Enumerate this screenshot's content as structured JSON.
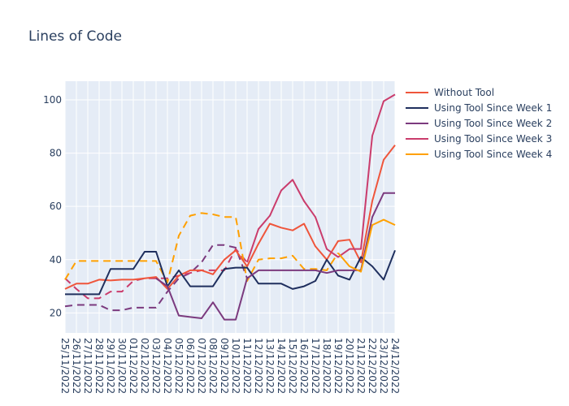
{
  "chart_data": {
    "type": "line",
    "title": "Lines of Code",
    "xlabel": "",
    "ylabel": "",
    "ylim": [
      12.5,
      107
    ],
    "yticks": [
      20,
      40,
      60,
      80,
      100
    ],
    "grid": true,
    "legend_position": "right",
    "categories": [
      "25/11/2022",
      "26/11/2022",
      "27/11/2022",
      "28/11/2022",
      "29/11/2022",
      "30/11/2022",
      "01/12/2022",
      "02/12/2022",
      "03/12/2022",
      "04/12/2022",
      "05/12/2022",
      "06/12/2022",
      "07/12/2022",
      "08/12/2022",
      "09/12/2022",
      "10/12/2022",
      "11/12/2022",
      "12/12/2022",
      "13/12/2022",
      "14/12/2022",
      "15/12/2022",
      "16/12/2022",
      "17/12/2022",
      "18/12/2022",
      "19/12/2022",
      "20/12/2022",
      "21/12/2022",
      "22/12/2022",
      "23/12/2022",
      "24/12/2022"
    ],
    "series": [
      {
        "name": "Without Tool",
        "color": "#ef553b",
        "values": [
          29,
          31,
          31,
          32.5,
          32.2,
          32.5,
          32.5,
          33,
          33.5,
          29,
          34,
          36,
          36,
          34.5,
          40,
          43.5,
          37.5,
          46,
          53.5,
          52,
          51,
          53.5,
          45,
          40,
          47,
          47.5,
          39,
          62,
          77.5,
          83
        ],
        "dashed_values": []
      },
      {
        "name": "Using Tool Since Week 1",
        "color": "#1f2f5e",
        "values": [
          27,
          27,
          27,
          27,
          36.5,
          36.5,
          36.5,
          43,
          43,
          30,
          36,
          30,
          30,
          30,
          36.5,
          37,
          37,
          31,
          31,
          31,
          29,
          30,
          32,
          40,
          34,
          32.5,
          41,
          37.5,
          32.5,
          43.5
        ],
        "dashed_values": []
      },
      {
        "name": "Using Tool Since Week 2",
        "color": "#7b3a7e",
        "values": [
          null,
          null,
          null,
          null,
          null,
          null,
          null,
          null,
          33,
          30,
          19,
          18.5,
          18,
          24,
          17.5,
          17.5,
          33,
          36,
          36,
          36,
          36,
          36,
          36,
          35,
          36,
          36,
          36,
          56,
          65,
          65
        ],
        "dashed_values": [
          22.5,
          23,
          23,
          23,
          21,
          21,
          22,
          22,
          22,
          28,
          33,
          35,
          39,
          45.5,
          45.5,
          44.5,
          33
        ]
      },
      {
        "name": "Using Tool Since Week 3",
        "color": "#ca3c6c",
        "values": [
          null,
          null,
          null,
          null,
          null,
          null,
          null,
          null,
          null,
          null,
          null,
          null,
          null,
          null,
          null,
          null,
          39,
          51.5,
          56.5,
          66,
          70,
          62,
          56,
          44,
          41,
          44,
          44,
          86.5,
          99.5,
          102
        ],
        "dashed_values": [
          33,
          29,
          25.5,
          25.5,
          28,
          28,
          32,
          33,
          33,
          33,
          34,
          35,
          36,
          36,
          36,
          44,
          39
        ]
      },
      {
        "name": "Using Tool Since Week 4",
        "color": "#ffa000",
        "values": [
          null,
          null,
          null,
          null,
          null,
          null,
          null,
          null,
          null,
          null,
          null,
          null,
          null,
          null,
          null,
          null,
          null,
          null,
          null,
          null,
          null,
          null,
          null,
          null,
          42.5,
          37.5,
          35.5,
          53,
          55,
          53
        ],
        "dashed_values": [
          32.5,
          39.5,
          39.5,
          39.5,
          39.5,
          39.5,
          39.5,
          39.5,
          39.5,
          31.5,
          49,
          56.5,
          57.5,
          57,
          56,
          56,
          32,
          40,
          40.5,
          40.5,
          41.5,
          36.5,
          36.5,
          36,
          42.5
        ]
      }
    ]
  }
}
